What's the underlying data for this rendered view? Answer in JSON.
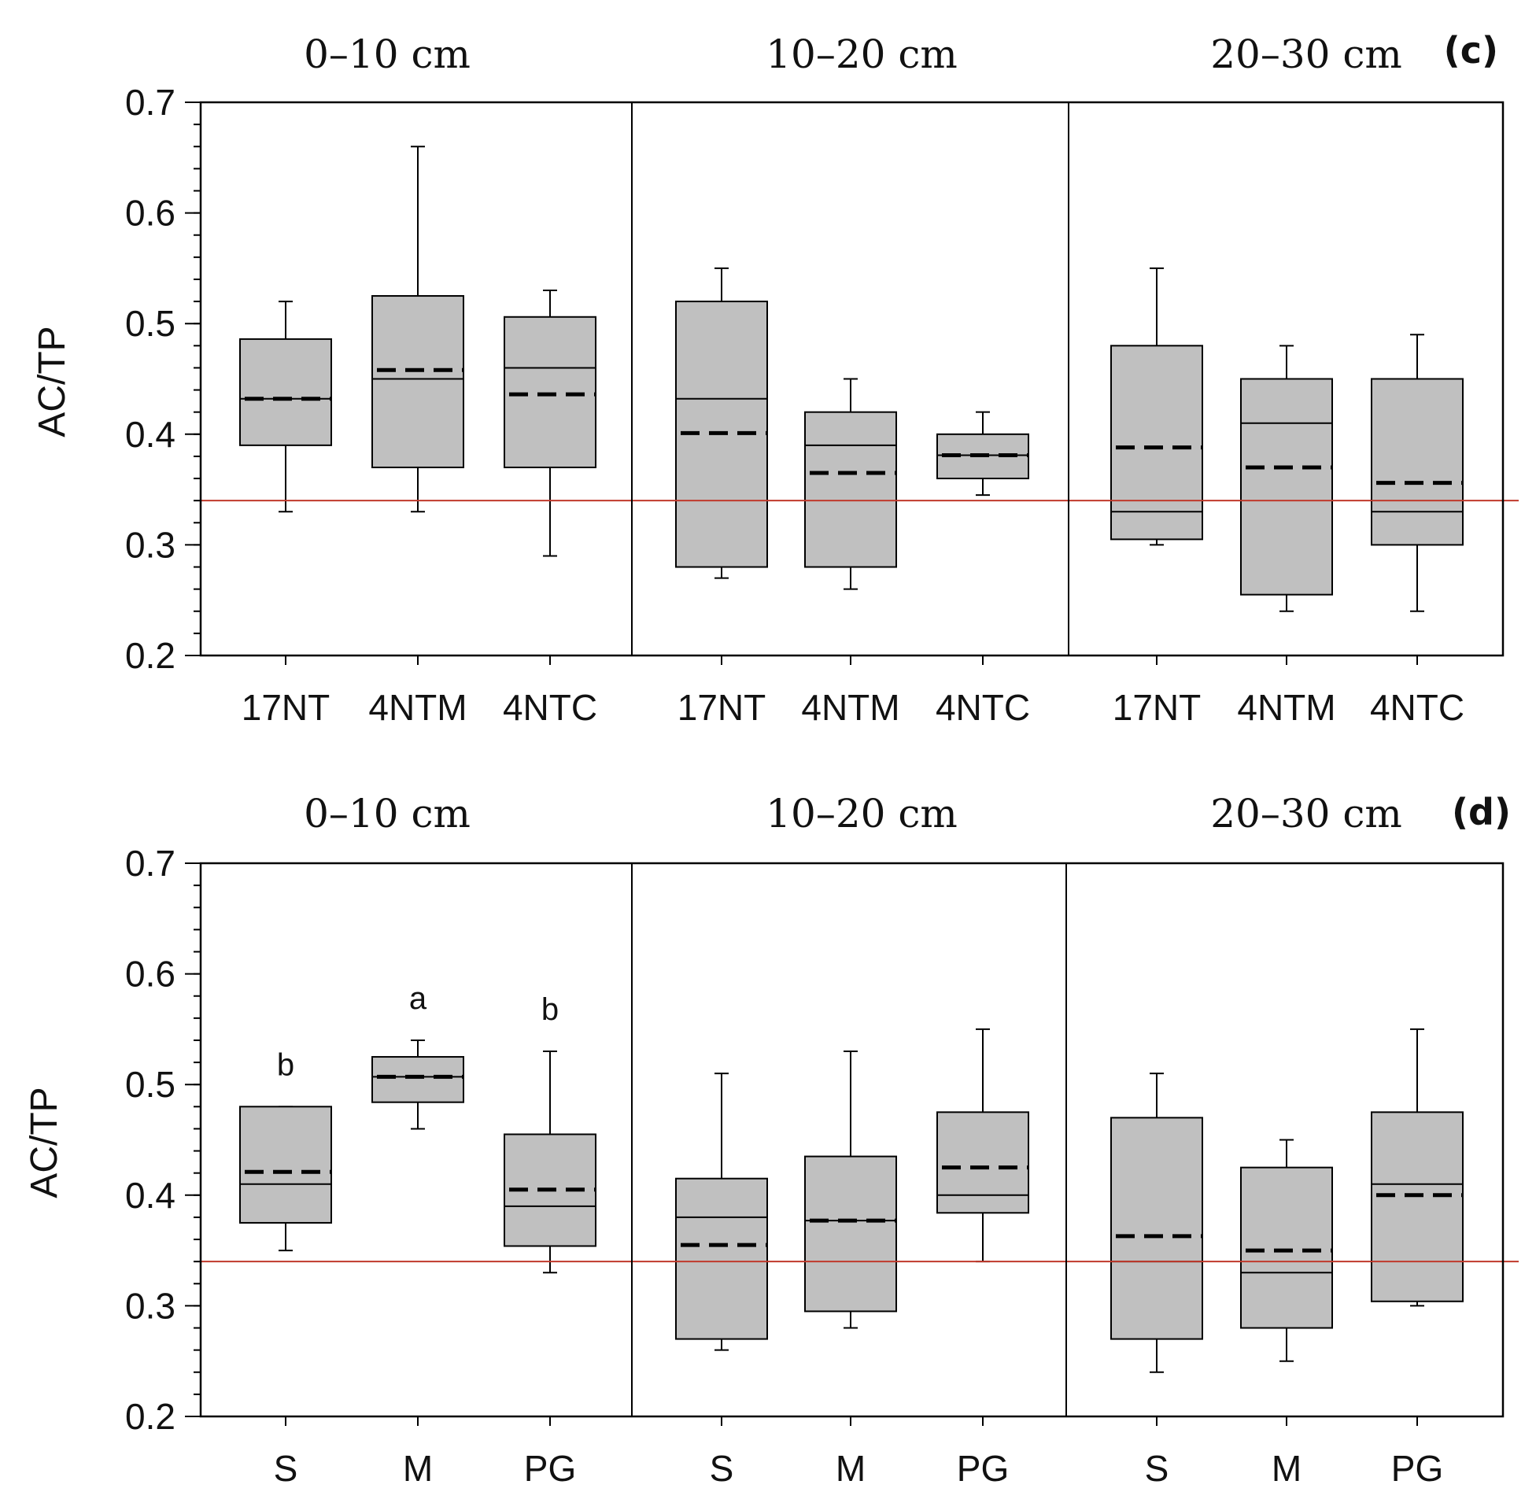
{
  "chart_data": [
    {
      "type": "box",
      "panel_label": "(c)",
      "ylabel": "AC/TP",
      "ylim": [
        0.2,
        0.7
      ],
      "yticks": [
        "0.2",
        "0.3",
        "0.4",
        "0.5",
        "0.6",
        "0.7"
      ],
      "reference_line": 0.34,
      "groups": [
        {
          "depth": "0–10 cm",
          "boxes": [
            {
              "label": "17NT",
              "min": 0.33,
              "q1": 0.39,
              "median": 0.432,
              "q3": 0.486,
              "max": 0.52,
              "mean": 0.432,
              "letter": ""
            },
            {
              "label": "4NTM",
              "min": 0.33,
              "q1": 0.37,
              "median": 0.45,
              "q3": 0.525,
              "max": 0.66,
              "mean": 0.458,
              "letter": ""
            },
            {
              "label": "4NTC",
              "min": 0.29,
              "q1": 0.37,
              "median": 0.46,
              "q3": 0.506,
              "max": 0.53,
              "mean": 0.436,
              "letter": ""
            }
          ]
        },
        {
          "depth": "10–20 cm",
          "boxes": [
            {
              "label": "17NT",
              "min": 0.27,
              "q1": 0.28,
              "median": 0.432,
              "q3": 0.52,
              "max": 0.55,
              "mean": 0.401,
              "letter": ""
            },
            {
              "label": "4NTM",
              "min": 0.26,
              "q1": 0.28,
              "median": 0.39,
              "q3": 0.42,
              "max": 0.45,
              "mean": 0.365,
              "letter": ""
            },
            {
              "label": "4NTC",
              "min": 0.345,
              "q1": 0.36,
              "median": 0.381,
              "q3": 0.4,
              "max": 0.42,
              "mean": 0.381,
              "letter": ""
            }
          ]
        },
        {
          "depth": "20–30 cm",
          "boxes": [
            {
              "label": "17NT",
              "min": 0.3,
              "q1": 0.305,
              "median": 0.33,
              "q3": 0.48,
              "max": 0.55,
              "mean": 0.388,
              "letter": ""
            },
            {
              "label": "4NTM",
              "min": 0.24,
              "q1": 0.255,
              "median": 0.41,
              "q3": 0.45,
              "max": 0.48,
              "mean": 0.37,
              "letter": ""
            },
            {
              "label": "4NTC",
              "min": 0.24,
              "q1": 0.3,
              "median": 0.33,
              "q3": 0.45,
              "max": 0.49,
              "mean": 0.356,
              "letter": ""
            }
          ]
        }
      ]
    },
    {
      "type": "box",
      "panel_label": "(d)",
      "ylabel": "AC/TP",
      "ylim": [
        0.2,
        0.7
      ],
      "yticks": [
        "0.2",
        "0.3",
        "0.4",
        "0.5",
        "0.6",
        "0.7"
      ],
      "reference_line": 0.34,
      "groups": [
        {
          "depth": "0–10 cm",
          "boxes": [
            {
              "label": "S",
              "min": 0.35,
              "q1": 0.375,
              "median": 0.41,
              "q3": 0.48,
              "max": 0.48,
              "mean": 0.421,
              "letter": "b"
            },
            {
              "label": "M",
              "min": 0.46,
              "q1": 0.484,
              "median": 0.507,
              "q3": 0.525,
              "max": 0.54,
              "mean": 0.507,
              "letter": "a"
            },
            {
              "label": "PG",
              "min": 0.33,
              "q1": 0.354,
              "median": 0.39,
              "q3": 0.455,
              "max": 0.53,
              "mean": 0.405,
              "letter": "b"
            }
          ]
        },
        {
          "depth": "10–20 cm",
          "boxes": [
            {
              "label": "S",
              "min": 0.26,
              "q1": 0.27,
              "median": 0.38,
              "q3": 0.415,
              "max": 0.51,
              "mean": 0.355,
              "letter": ""
            },
            {
              "label": "M",
              "min": 0.28,
              "q1": 0.295,
              "median": 0.377,
              "q3": 0.435,
              "max": 0.53,
              "mean": 0.377,
              "letter": ""
            },
            {
              "label": "PG",
              "min": 0.34,
              "q1": 0.384,
              "median": 0.4,
              "q3": 0.475,
              "max": 0.55,
              "mean": 0.425,
              "letter": ""
            }
          ]
        },
        {
          "depth": "20–30 cm",
          "boxes": [
            {
              "label": "S",
              "min": 0.24,
              "q1": 0.27,
              "median": 0.34,
              "q3": 0.47,
              "max": 0.51,
              "mean": 0.363,
              "letter": ""
            },
            {
              "label": "M",
              "min": 0.25,
              "q1": 0.28,
              "median": 0.33,
              "q3": 0.425,
              "max": 0.45,
              "mean": 0.35,
              "letter": ""
            },
            {
              "label": "PG",
              "min": 0.3,
              "q1": 0.304,
              "median": 0.41,
              "q3": 0.475,
              "max": 0.55,
              "mean": 0.4,
              "letter": ""
            }
          ]
        }
      ]
    }
  ]
}
